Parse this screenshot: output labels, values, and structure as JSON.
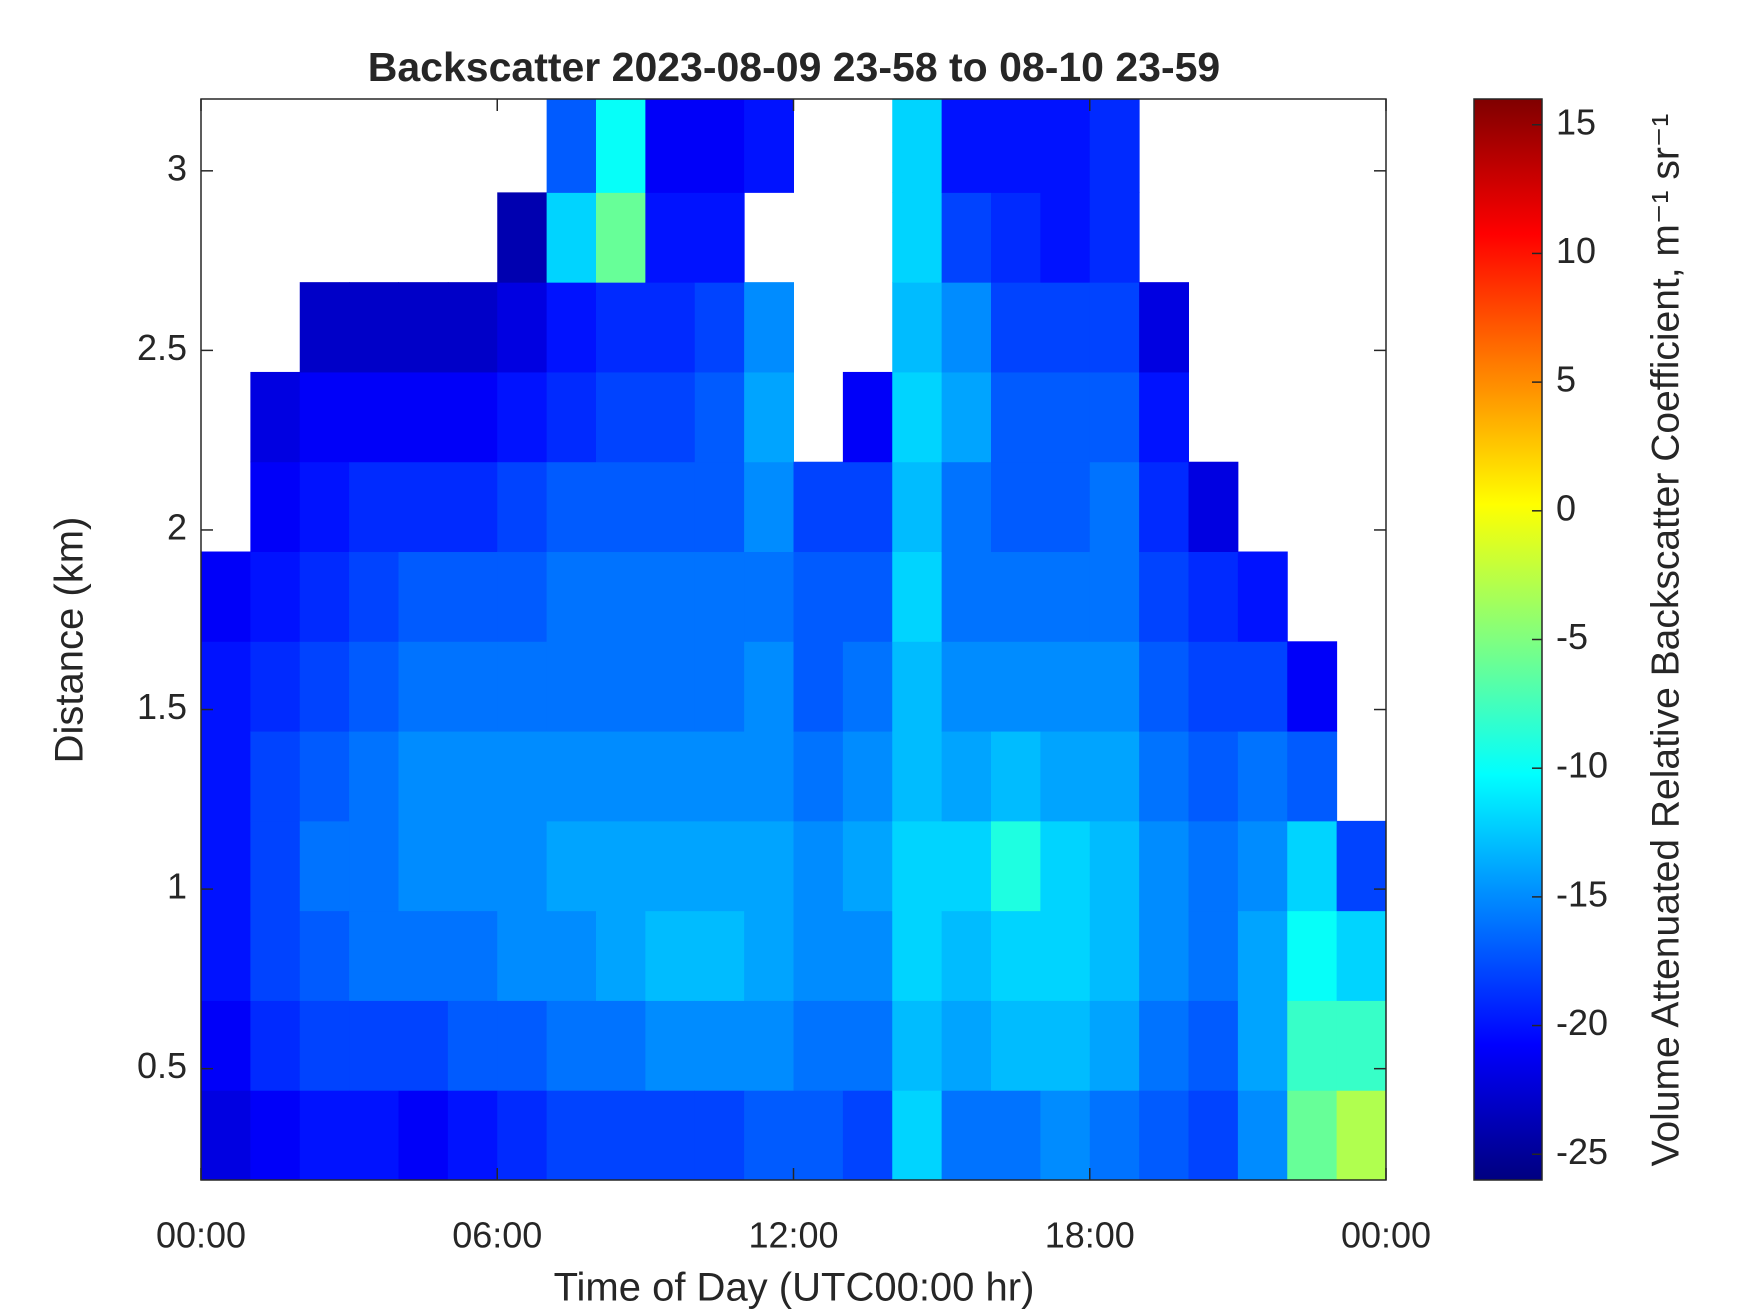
{
  "chart_data": {
    "type": "heatmap",
    "title": "Backscatter 2023-08-09 23-58 to 08-10 23-59",
    "x_label": "Time of Day (UTC00:00 hr)",
    "y_label": "Distance (km)",
    "colorbar_label": "Volume Attenuated Relative Backscatter Coefficient, m⁻¹ sr⁻¹",
    "colormap": "jet",
    "xlim": [
      0,
      24
    ],
    "xticks": [
      {
        "value": 0,
        "label": "00:00"
      },
      {
        "value": 6,
        "label": "06:00"
      },
      {
        "value": 12,
        "label": "12:00"
      },
      {
        "value": 18,
        "label": "18:00"
      },
      {
        "value": 24,
        "label": "00:00"
      }
    ],
    "ylim": [
      0.19,
      3.2
    ],
    "yticks": [
      0.5,
      1,
      1.5,
      2,
      2.5,
      3
    ],
    "clim": [
      -26,
      16
    ],
    "cticks": [
      -25,
      -20,
      -15,
      -10,
      -5,
      0,
      5,
      10,
      15
    ],
    "xbins": [
      0,
      1,
      2,
      3,
      4,
      5,
      6,
      7,
      8,
      9,
      10,
      11,
      12,
      13,
      14,
      15,
      16,
      17,
      18,
      19,
      20,
      21,
      22,
      23,
      24
    ],
    "ybins": [
      0.19,
      0.44,
      0.69,
      0.94,
      1.19,
      1.44,
      1.69,
      1.94,
      2.19,
      2.44,
      2.69,
      2.94,
      3.2
    ],
    "values": [
      [
        -22,
        -21,
        -20,
        -20,
        -20,
        -20,
        -21,
        null,
        null,
        null,
        null,
        null
      ],
      [
        -21,
        -19,
        -18,
        -18,
        -18,
        -19,
        -20,
        -21,
        -22,
        null,
        null,
        null
      ],
      [
        -20,
        -18,
        -17,
        -16,
        -17,
        -18,
        -19,
        -20,
        -21,
        -23,
        null,
        null
      ],
      [
        -20,
        -18,
        -16,
        -16,
        -16,
        -17,
        -18,
        -19,
        -21,
        -23,
        null,
        null
      ],
      [
        -21,
        -18,
        -16,
        -15,
        -15,
        -16,
        -17,
        -19,
        -21,
        -23,
        null,
        null
      ],
      [
        -20,
        -17,
        -16,
        -15,
        -15,
        -16,
        -17,
        -19,
        -21,
        -23,
        null,
        null
      ],
      [
        -19,
        -17,
        -15,
        -15,
        -15,
        -16,
        -17,
        -18,
        -20,
        -22,
        -24,
        null
      ],
      [
        -18,
        -16,
        -15,
        -14,
        -15,
        -16,
        -16,
        -17,
        -19,
        -20,
        -12,
        -17
      ],
      [
        -18,
        -16,
        -14,
        -14,
        -15,
        -16,
        -16,
        -17,
        -18,
        -19,
        -6,
        -10
      ],
      [
        -18,
        -15,
        -13,
        -14,
        -15,
        -16,
        -16,
        -17,
        -18,
        -19,
        -20,
        -21
      ],
      [
        -18,
        -15,
        -13,
        -14,
        -15,
        -16,
        -16,
        -17,
        -17,
        -18,
        -20,
        -21
      ],
      [
        -17,
        -15,
        -14,
        -14,
        -15,
        -15,
        -16,
        -15,
        -14,
        -15,
        null,
        -20
      ],
      [
        -17,
        -16,
        -15,
        -15,
        -16,
        -17,
        -17,
        -18,
        null,
        null,
        null,
        null
      ],
      [
        -18,
        -16,
        -15,
        -14,
        -15,
        -16,
        -17,
        -18,
        -21,
        null,
        null,
        null
      ],
      [
        -12,
        -13,
        -12,
        -12,
        -13,
        -13,
        -12,
        -13,
        -12,
        -13,
        -12,
        -12
      ],
      [
        -16,
        -14,
        -13,
        -12,
        -14,
        -15,
        -16,
        -16,
        -14,
        -15,
        -18,
        -20
      ],
      [
        -16,
        -13,
        -12,
        -9,
        -13,
        -15,
        -16,
        -17,
        -17,
        -18,
        -19,
        -20
      ],
      [
        -15,
        -13,
        -12,
        -12,
        -14,
        -15,
        -16,
        -17,
        -17,
        -18,
        -20,
        -20
      ],
      [
        -16,
        -14,
        -13,
        -13,
        -14,
        -15,
        -16,
        -16,
        -17,
        -18,
        -19,
        -19
      ],
      [
        -17,
        -16,
        -15,
        -15,
        -16,
        -17,
        -18,
        -19,
        -20,
        -22,
        null,
        null
      ],
      [
        -18,
        -17,
        -16,
        -16,
        -17,
        -18,
        -19,
        -22,
        null,
        null,
        null,
        null
      ],
      [
        -15,
        -14,
        -14,
        -15,
        -16,
        -18,
        -20,
        null,
        null,
        null,
        null,
        null
      ],
      [
        -6,
        -8,
        -10,
        -12,
        -17,
        -21,
        null,
        null,
        null,
        null,
        null,
        null
      ],
      [
        -3,
        -8,
        -12,
        -18,
        null,
        null,
        null,
        null,
        null,
        null,
        null,
        null
      ]
    ]
  }
}
